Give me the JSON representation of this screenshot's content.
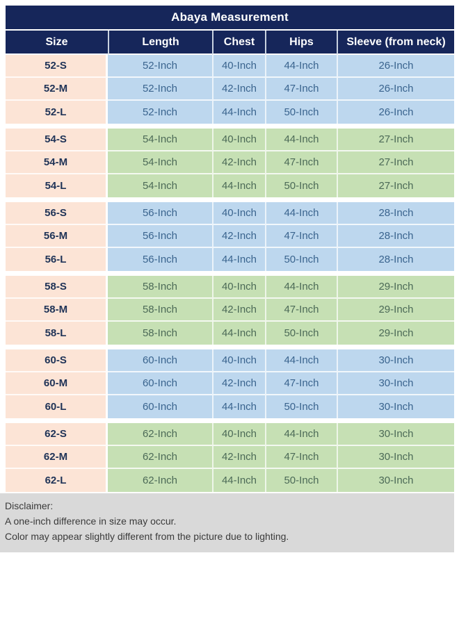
{
  "colors": {
    "navy": "#16265a",
    "peach": "#fce4d6",
    "blue": "#bdd7ee",
    "green": "#c6e0b4",
    "gray": "#d9d9d9",
    "header_text": "#ffffff",
    "size_text": "#1f3357",
    "blue_text": "#3a648e",
    "green_text": "#4c6a57",
    "disclaimer_text": "#3a3a3a"
  },
  "table": {
    "title": "Abaya Measurement",
    "columns": [
      "Size",
      "Length",
      "Chest",
      "Hips",
      "Sleeve (from neck)"
    ],
    "groups": [
      {
        "theme": "blue",
        "rows": [
          [
            "52-S",
            "52-Inch",
            "40-Inch",
            "44-Inch",
            "26-Inch"
          ],
          [
            "52-M",
            "52-Inch",
            "42-Inch",
            "47-Inch",
            "26-Inch"
          ],
          [
            "52-L",
            "52-Inch",
            "44-Inch",
            "50-Inch",
            "26-Inch"
          ]
        ]
      },
      {
        "theme": "green",
        "rows": [
          [
            "54-S",
            "54-Inch",
            "40-Inch",
            "44-Inch",
            "27-Inch"
          ],
          [
            "54-M",
            "54-Inch",
            "42-Inch",
            "47-Inch",
            "27-Inch"
          ],
          [
            "54-L",
            "54-Inch",
            "44-Inch",
            "50-Inch",
            "27-Inch"
          ]
        ]
      },
      {
        "theme": "blue",
        "rows": [
          [
            "56-S",
            "56-Inch",
            "40-Inch",
            "44-Inch",
            "28-Inch"
          ],
          [
            "56-M",
            "56-Inch",
            "42-Inch",
            "47-Inch",
            "28-Inch"
          ],
          [
            "56-L",
            "56-Inch",
            "44-Inch",
            "50-Inch",
            "28-Inch"
          ]
        ]
      },
      {
        "theme": "green",
        "rows": [
          [
            "58-S",
            "58-Inch",
            "40-Inch",
            "44-Inch",
            "29-Inch"
          ],
          [
            "58-M",
            "58-Inch",
            "42-Inch",
            "47-Inch",
            "29-Inch"
          ],
          [
            "58-L",
            "58-Inch",
            "44-Inch",
            "50-Inch",
            "29-Inch"
          ]
        ]
      },
      {
        "theme": "blue",
        "rows": [
          [
            "60-S",
            "60-Inch",
            "40-Inch",
            "44-Inch",
            "30-Inch"
          ],
          [
            "60-M",
            "60-Inch",
            "42-Inch",
            "47-Inch",
            "30-Inch"
          ],
          [
            "60-L",
            "60-Inch",
            "44-Inch",
            "50-Inch",
            "30-Inch"
          ]
        ]
      },
      {
        "theme": "green",
        "rows": [
          [
            "62-S",
            "62-Inch",
            "40-Inch",
            "44-Inch",
            "30-Inch"
          ],
          [
            "62-M",
            "62-Inch",
            "42-Inch",
            "47-Inch",
            "30-Inch"
          ],
          [
            "62-L",
            "62-Inch",
            "44-Inch",
            "50-Inch",
            "30-Inch"
          ]
        ]
      }
    ]
  },
  "disclaimer": {
    "heading": "Disclaimer:",
    "stray_mark": ".",
    "line1": "A one-inch difference in size may occur.",
    "line2": "Color may appear slightly different from the picture due to lighting."
  }
}
